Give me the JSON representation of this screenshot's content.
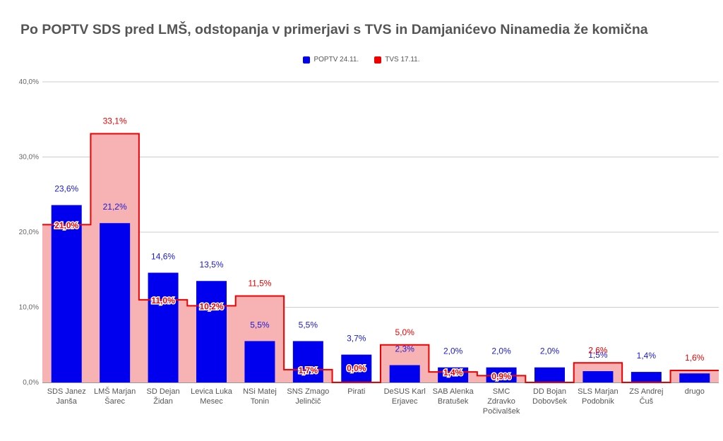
{
  "chart_data": {
    "type": "bar",
    "title": "Po POPTV SDS pred LMŠ, odstopanja v primerjavi s TVS in Damjanićevo Ninamedia že komična",
    "ylim": [
      0,
      40
    ],
    "yticks": [
      "0,0%",
      "10,0%",
      "20,0%",
      "30,0%",
      "40,0%"
    ],
    "ytick_values": [
      0,
      10,
      20,
      30,
      40
    ],
    "grid": true,
    "legend_position": "top-center",
    "categories": [
      [
        "SDS Janez",
        "Janša"
      ],
      [
        "LMŠ Marjan",
        "Šarec"
      ],
      [
        "SD Dejan",
        "Židan"
      ],
      [
        "Levica Luka",
        "Mesec"
      ],
      [
        "NSi Matej",
        "Tonin"
      ],
      [
        "SNS Zmago",
        "Jelinčič"
      ],
      [
        "Pirati"
      ],
      [
        "DeSUS Karl",
        "Erjavec"
      ],
      [
        "SAB Alenka",
        "Bratušek"
      ],
      [
        "SMC",
        "Zdravko",
        "Počivalšek"
      ],
      [
        "DD Bojan",
        "Dobovšek"
      ],
      [
        "SLS Marjan",
        "Podobnik"
      ],
      [
        "ZS Andrej",
        "Čuš"
      ],
      [
        "drugo"
      ]
    ],
    "series": [
      {
        "name": "POPTV 24.11.",
        "kind": "bar",
        "color": "#0000ee",
        "values": [
          23.6,
          21.2,
          14.6,
          13.5,
          5.5,
          5.5,
          3.7,
          2.3,
          2.0,
          2.0,
          2.0,
          1.5,
          1.4,
          1.2
        ],
        "labels": [
          "23,6%",
          "21,2%",
          "14,6%",
          "13,5%",
          "5,5%",
          "5,5%",
          "3,7%",
          "2,3%",
          "2,0%",
          "2,0%",
          "2,0%",
          "1,5%",
          "1,4%",
          ""
        ]
      },
      {
        "name": "TVS 17.11.",
        "kind": "stepped-area",
        "color": "#ee0000",
        "fill": "#f7b3b3",
        "values": [
          21.0,
          33.1,
          11.0,
          10.2,
          11.5,
          1.7,
          0.0,
          5.0,
          1.4,
          0.9,
          0,
          2.6,
          0,
          1.6
        ],
        "labels": [
          "21,0%",
          "33,1%",
          "11,0%",
          "10,2%",
          "11,5%",
          "1,7%",
          "0,0%",
          "5,0%",
          "1,4%",
          "0,9%",
          "",
          "2,6%",
          "",
          "1,6%"
        ]
      }
    ]
  }
}
